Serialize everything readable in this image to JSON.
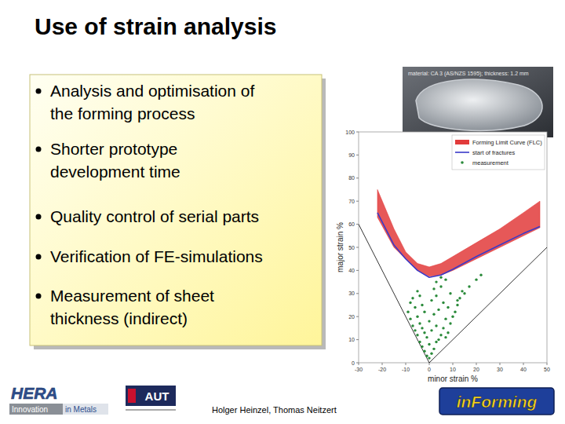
{
  "slide": {
    "title": "Use of strain analysis",
    "bullets": [
      [
        "Analysis and optimisation of",
        "the forming process"
      ],
      [
        "Shorter prototype",
        "development time"
      ],
      [
        "Quality control of serial parts"
      ],
      [
        "Verification of FE-simulations"
      ],
      [
        "Measurement of sheet",
        "thickness (indirect)"
      ]
    ],
    "photo_caption": "material: CA 3 (AS/NZS 1595); thickness: 1.2 mm",
    "footer": "Holger Heinzel, Thomas Neitzert",
    "logos": [
      "HERA",
      "Innovation",
      "in Metals",
      "AUT",
      "inForming"
    ]
  },
  "chart_data": {
    "type": "line",
    "x_label": "minor strain %",
    "y_label": "major strain %",
    "xlim": [
      -30,
      50
    ],
    "ylim": [
      0,
      100
    ],
    "xticks": [
      -30,
      -20,
      -10,
      0,
      10,
      20,
      30,
      40,
      50
    ],
    "yticks": [
      0,
      10,
      20,
      30,
      40,
      50,
      60,
      70,
      80,
      90,
      100
    ],
    "grid": false,
    "legend": "upper right",
    "series": [
      {
        "name": "Forming Limit Curve (FLC)",
        "type": "area",
        "color": "#e23b3b",
        "x": [
          -22,
          -15,
          -10,
          -5,
          0,
          5,
          10,
          20,
          30,
          40,
          47
        ],
        "lower": [
          63,
          50,
          45,
          40,
          37.5,
          38,
          40,
          45,
          50,
          55,
          58.5
        ],
        "upper": [
          75,
          58,
          48,
          43,
          41.5,
          43,
          46,
          52,
          58,
          65,
          70
        ]
      },
      {
        "name": "start of fractures",
        "type": "line",
        "color": "#3a3ac8",
        "x": [
          -22,
          -15,
          -10,
          -5,
          0,
          5,
          10,
          20,
          30,
          40,
          47
        ],
        "values": [
          65,
          51,
          45,
          40,
          37,
          38,
          40.5,
          46,
          51,
          56,
          59
        ]
      },
      {
        "name": "measurement",
        "type": "scatter",
        "color": "#2a8a3a",
        "marker": "circle",
        "x": [
          -9,
          -8,
          -8,
          -7,
          -7,
          -6,
          -6,
          -5,
          -5,
          -5,
          -4,
          -4,
          -3,
          -3,
          -3,
          -2,
          -2,
          -2,
          -1,
          -1,
          0,
          0,
          0,
          1,
          1,
          1,
          2,
          2,
          3,
          3,
          3,
          4,
          4,
          5,
          5,
          6,
          6,
          7,
          7,
          8,
          8,
          9,
          9,
          10,
          11,
          12,
          13,
          15,
          17,
          20,
          22,
          3,
          5,
          -4,
          2,
          7,
          14,
          12
        ],
        "values": [
          22,
          26,
          19,
          16,
          28,
          14,
          24,
          12,
          20,
          31,
          9,
          17,
          7,
          15,
          25,
          5,
          13,
          22,
          3,
          11,
          2,
          8,
          18,
          4,
          14,
          27,
          6,
          21,
          9,
          16,
          29,
          10,
          23,
          12,
          33,
          15,
          26,
          11,
          19,
          13,
          24,
          17,
          30,
          20,
          22,
          25,
          28,
          30,
          33,
          36,
          38,
          35,
          37,
          29,
          32,
          36,
          31,
          27
        ]
      }
    ],
    "reference_lines": [
      {
        "x": [
          -30,
          0
        ],
        "values": [
          60,
          0
        ],
        "color": "#000000"
      },
      {
        "x": [
          0,
          50
        ],
        "values": [
          0,
          50
        ],
        "color": "#000000"
      }
    ]
  }
}
